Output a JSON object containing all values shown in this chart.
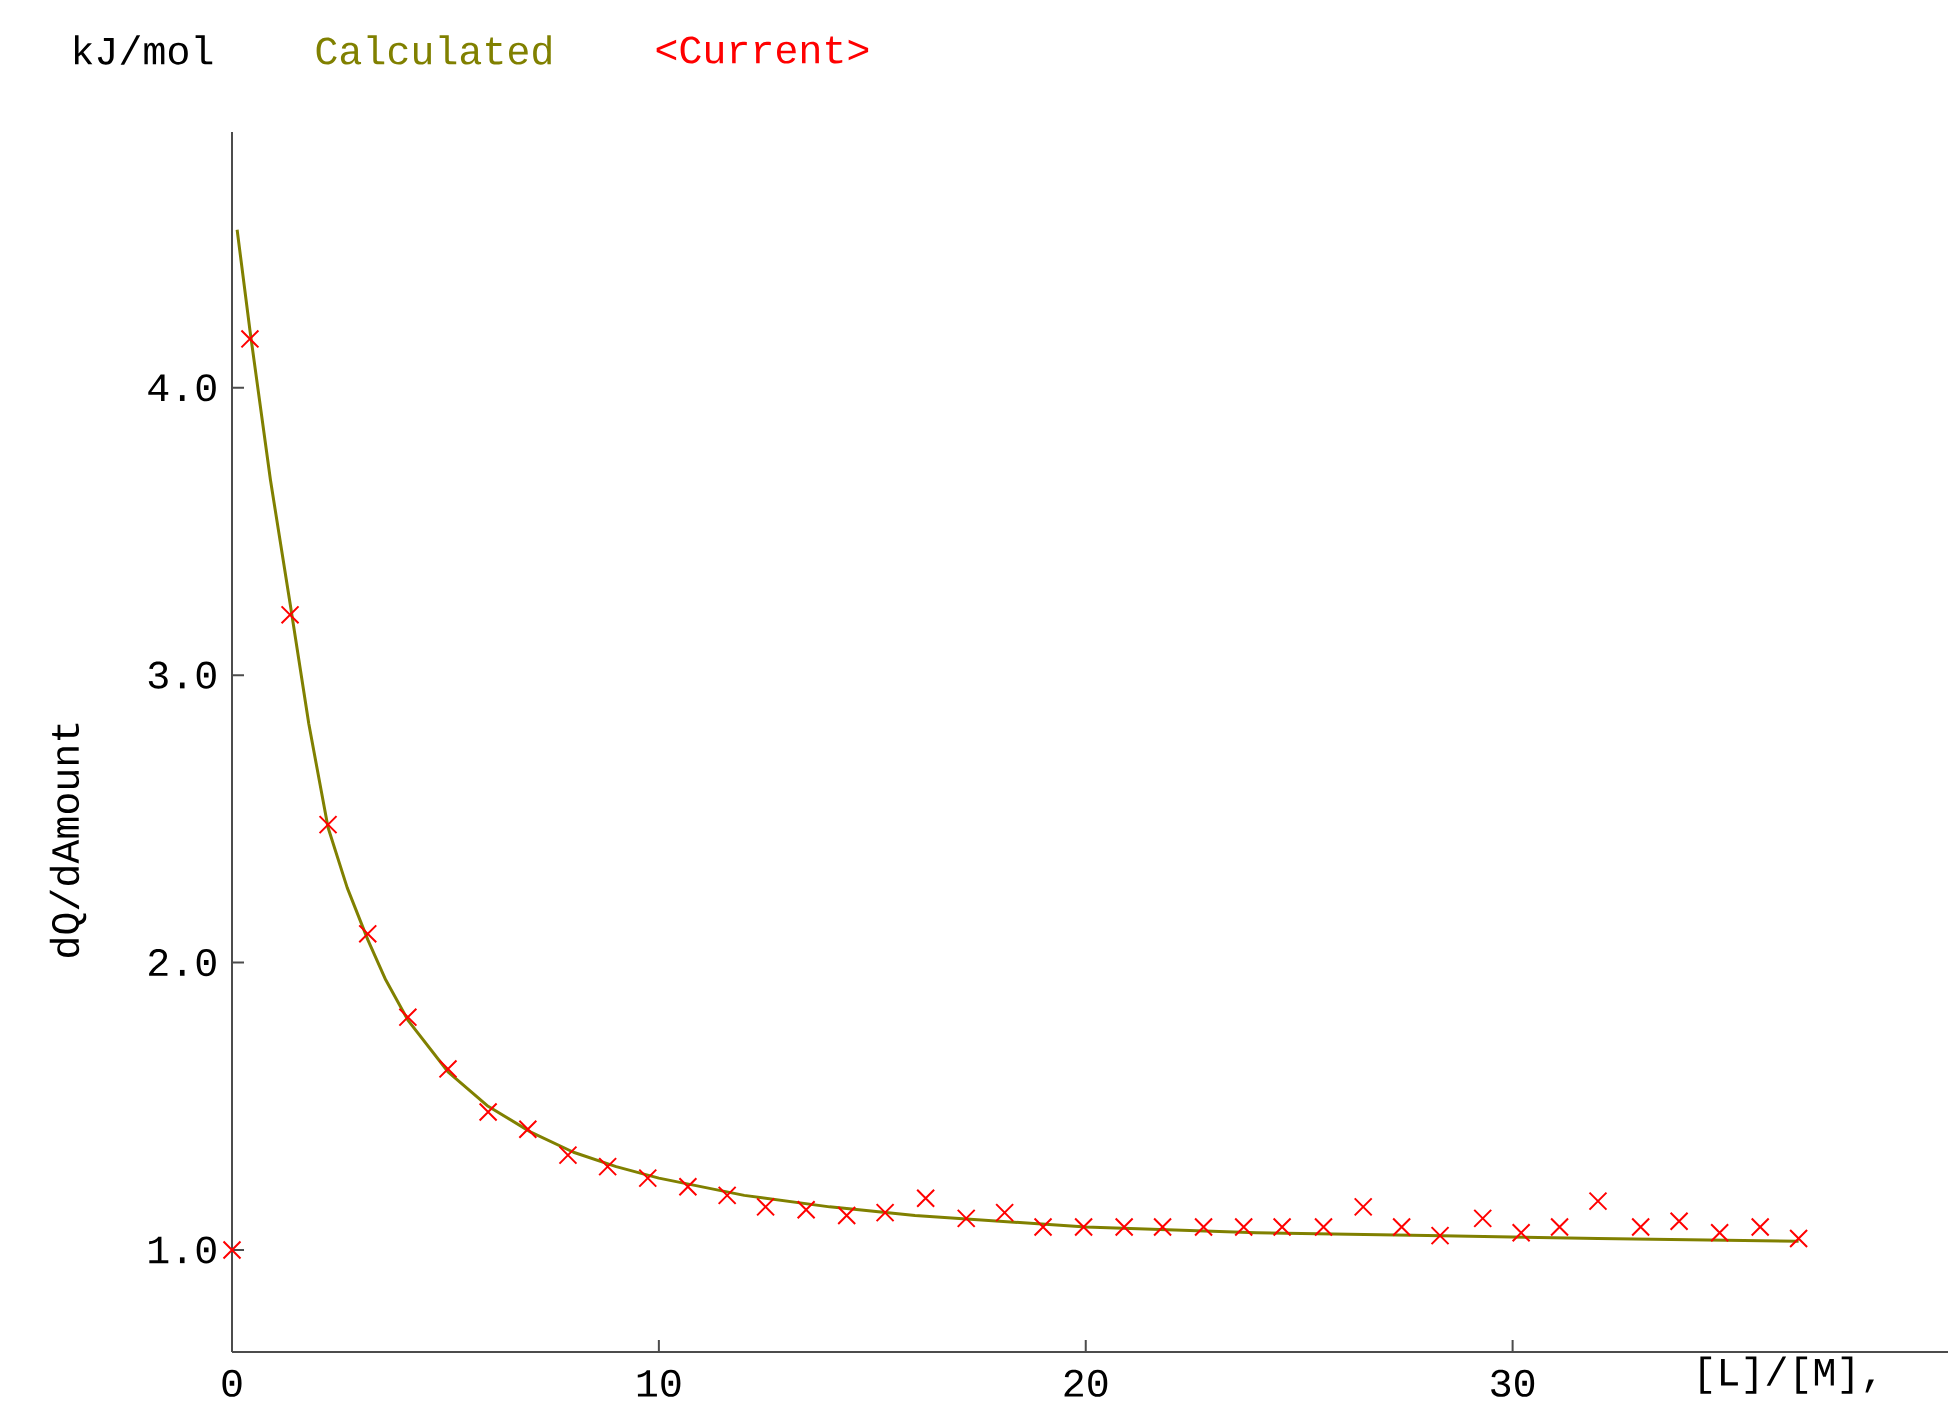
{
  "chart_data": {
    "type": "scatter",
    "xlabel": "[L]/[M],",
    "ylabel": "dQ/dAmount",
    "annotations": [
      "kJ/mol"
    ],
    "xlim": [
      0,
      40.2
    ],
    "ylim": [
      0.645,
      4.89
    ],
    "xticks": [
      0,
      10,
      20,
      30
    ],
    "yticks": [
      {
        "value": 1,
        "label": "1.0"
      },
      {
        "value": 2,
        "label": "2.0"
      },
      {
        "value": 3,
        "label": "3.0"
      },
      {
        "value": 4,
        "label": "4.0"
      }
    ],
    "grid": false,
    "legend": "top left",
    "series": [
      {
        "name": "Calculated",
        "type": "line",
        "color": "#808000",
        "marker": "none",
        "line_style": "solid",
        "x": [
          0.12,
          0.42,
          0.9,
          1.36,
          1.8,
          2.25,
          2.7,
          3.18,
          3.6,
          4.12,
          5.06,
          6.0,
          7.0,
          8.0,
          9.0,
          10.0,
          12.0,
          14.0,
          16.0,
          18.0,
          20.0,
          24.0,
          28.0,
          32.0,
          36.7
        ],
        "values": [
          4.55,
          4.2,
          3.68,
          3.25,
          2.83,
          2.47,
          2.26,
          2.08,
          1.94,
          1.8,
          1.62,
          1.5,
          1.41,
          1.34,
          1.29,
          1.25,
          1.19,
          1.15,
          1.12,
          1.1,
          1.08,
          1.06,
          1.05,
          1.04,
          1.03
        ]
      },
      {
        "name": "<Current>",
        "color": "#ff0000",
        "marker": "cross",
        "x": [
          0,
          0.42,
          1.36,
          2.25,
          3.18,
          4.12,
          5.06,
          6.0,
          6.93,
          7.87,
          8.8,
          9.74,
          10.68,
          11.6,
          12.5,
          13.45,
          14.4,
          15.3,
          16.25,
          17.2,
          18.1,
          19.0,
          19.95,
          20.9,
          21.8,
          22.76,
          23.7,
          24.6,
          25.57,
          26.5,
          27.4,
          28.3,
          29.3,
          30.2,
          31.1,
          32.0,
          33.0,
          33.9,
          34.85,
          35.8,
          36.7
        ],
        "values": [
          1.0,
          4.17,
          3.21,
          2.48,
          2.1,
          1.81,
          1.63,
          1.48,
          1.42,
          1.33,
          1.29,
          1.25,
          1.22,
          1.19,
          1.15,
          1.14,
          1.12,
          1.13,
          1.18,
          1.11,
          1.13,
          1.08,
          1.08,
          1.08,
          1.08,
          1.08,
          1.08,
          1.08,
          1.08,
          1.15,
          1.08,
          1.05,
          1.11,
          1.06,
          1.08,
          1.17,
          1.08,
          1.1,
          1.06,
          1.08,
          1.04
        ]
      }
    ]
  }
}
